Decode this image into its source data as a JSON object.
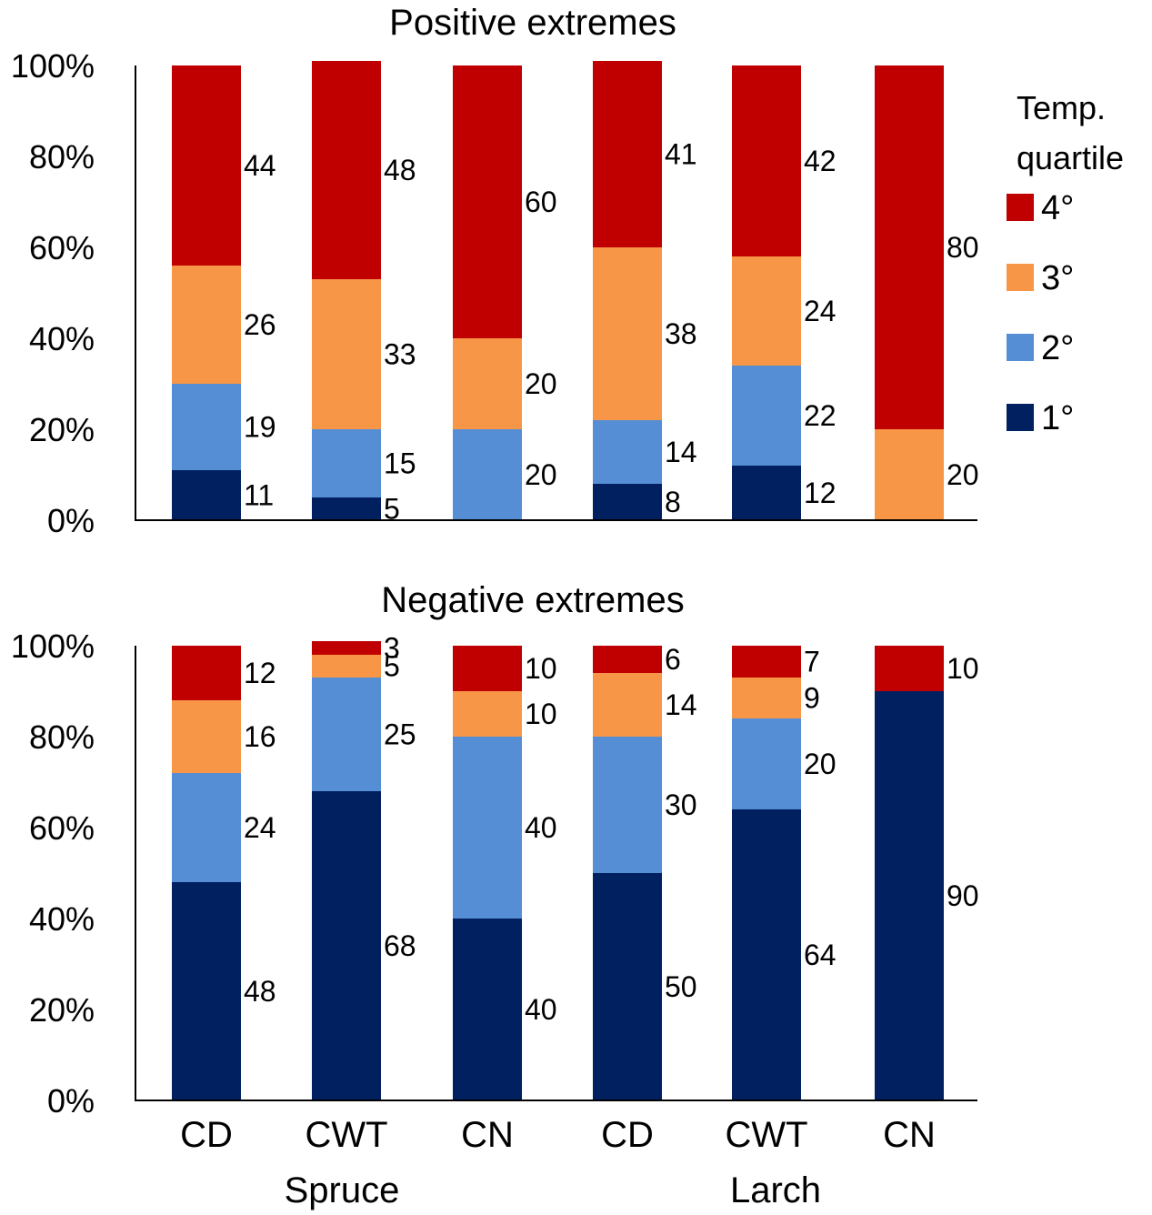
{
  "chart_data": [
    {
      "type": "bar",
      "stacked": true,
      "normalized": true,
      "title": "Positive extremes",
      "y_ticks": [
        "0%",
        "20%",
        "40%",
        "60%",
        "80%",
        "100%"
      ],
      "ylim": [
        0,
        100
      ],
      "categories": [
        "CD",
        "CWT",
        "CN",
        "CD",
        "CWT",
        "CN"
      ],
      "groups": [
        {
          "name": "Spruce",
          "categories": [
            "CD",
            "CWT",
            "CN"
          ]
        },
        {
          "name": "Larch",
          "categories": [
            "CD",
            "CWT",
            "CN"
          ]
        }
      ],
      "series": [
        {
          "name": "1°",
          "values": [
            11,
            5,
            0,
            8,
            12,
            0
          ]
        },
        {
          "name": "2°",
          "values": [
            19,
            15,
            20,
            14,
            22,
            0
          ]
        },
        {
          "name": "3°",
          "values": [
            26,
            33,
            20,
            38,
            24,
            20
          ]
        },
        {
          "name": "4°",
          "values": [
            44,
            48,
            60,
            41,
            42,
            80
          ]
        }
      ]
    },
    {
      "type": "bar",
      "stacked": true,
      "normalized": true,
      "title": "Negative extremes",
      "y_ticks": [
        "0%",
        "20%",
        "40%",
        "60%",
        "80%",
        "100%"
      ],
      "ylim": [
        0,
        100
      ],
      "categories": [
        "CD",
        "CWT",
        "CN",
        "CD",
        "CWT",
        "CN"
      ],
      "groups": [
        {
          "name": "Spruce",
          "categories": [
            "CD",
            "CWT",
            "CN"
          ]
        },
        {
          "name": "Larch",
          "categories": [
            "CD",
            "CWT",
            "CN"
          ]
        }
      ],
      "series": [
        {
          "name": "1°",
          "values": [
            48,
            68,
            40,
            50,
            64,
            90
          ]
        },
        {
          "name": "2°",
          "values": [
            24,
            25,
            40,
            30,
            20,
            0
          ]
        },
        {
          "name": "3°",
          "values": [
            16,
            5,
            10,
            14,
            9,
            0
          ]
        },
        {
          "name": "4°",
          "values": [
            12,
            3,
            10,
            6,
            7,
            10
          ]
        }
      ]
    }
  ],
  "legend": {
    "title_line1": "Temp.",
    "title_line2": "quartile",
    "items": [
      {
        "label": "4°",
        "color": "#C00000"
      },
      {
        "label": "3°",
        "color": "#F79646"
      },
      {
        "label": "2°",
        "color": "#558ED5"
      },
      {
        "label": "1°",
        "color": "#002060"
      }
    ]
  },
  "series_colors": {
    "1°": "#002060",
    "2°": "#558ED5",
    "3°": "#F79646",
    "4°": "#C00000"
  },
  "x_axis": {
    "categories": [
      "CD",
      "CWT",
      "CN",
      "CD",
      "CWT",
      "CN"
    ],
    "group_labels": [
      "Spruce",
      "Larch"
    ]
  }
}
